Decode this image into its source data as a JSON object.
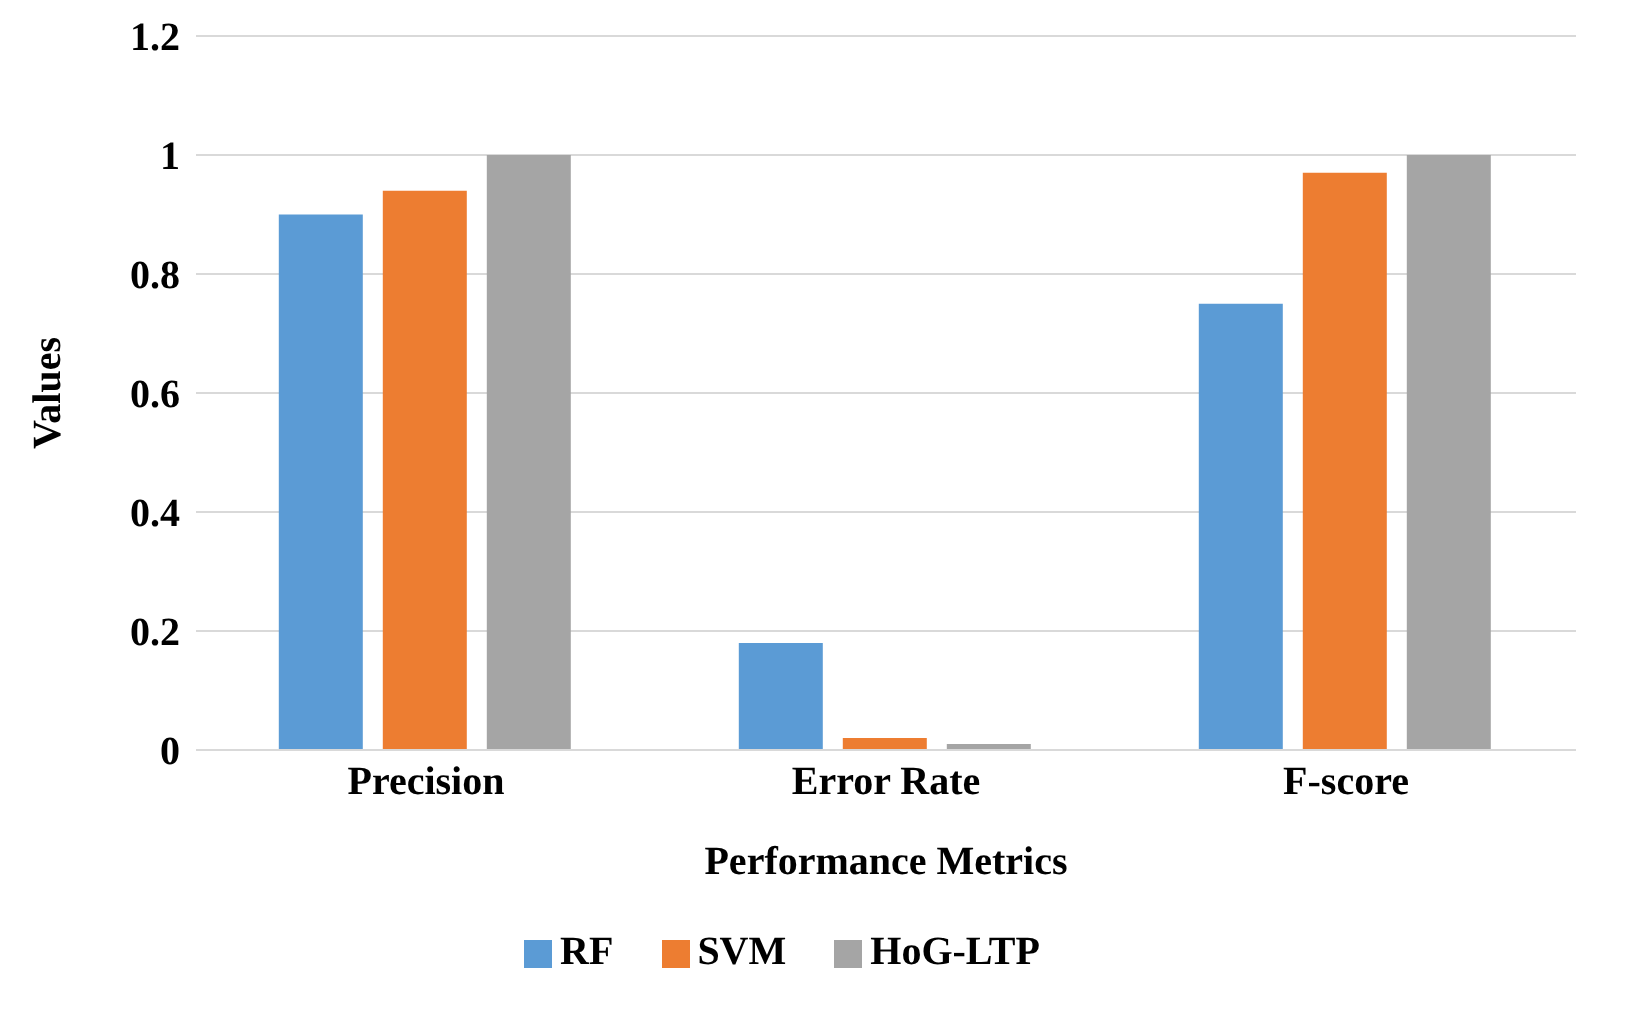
{
  "chart_data": {
    "type": "bar",
    "xlabel": "Performance Metrics",
    "ylabel": "Values",
    "categories": [
      "Precision",
      "Error Rate",
      "F-score"
    ],
    "series": [
      {
        "name": "RF",
        "color": "#5b9bd5",
        "values": [
          0.9,
          0.18,
          0.75
        ]
      },
      {
        "name": "SVM",
        "color": "#ed7d31",
        "values": [
          0.94,
          0.02,
          0.97
        ]
      },
      {
        "name": "HoG-LTP",
        "color": "#a5a5a5",
        "values": [
          1.0,
          0.01,
          1.0
        ]
      }
    ],
    "ylim": [
      0,
      1.2
    ],
    "yticks": [
      0,
      0.2,
      0.4,
      0.6,
      0.8,
      1,
      1.2
    ],
    "grid": "y",
    "legend": "bottom"
  }
}
